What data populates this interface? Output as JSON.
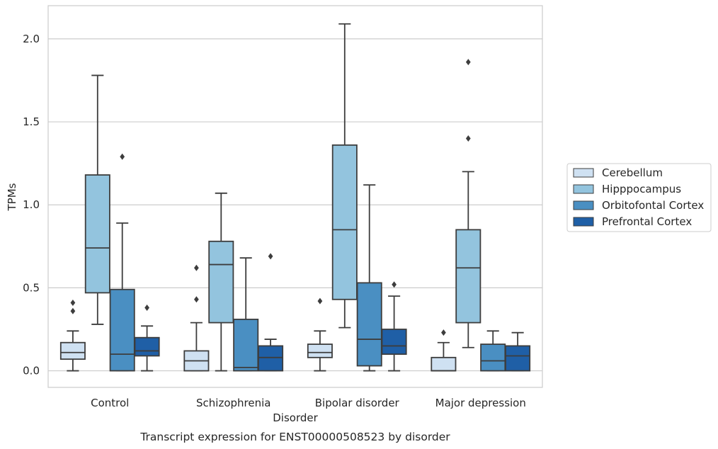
{
  "chart_data": {
    "type": "boxplot",
    "title": "",
    "caption": "Transcript expression for ENST00000508523 by disorder",
    "xlabel": "Disorder",
    "ylabel": "TPMs",
    "ylim": [
      -0.1,
      2.2
    ],
    "yticks": [
      0.0,
      0.5,
      1.0,
      1.5,
      2.0
    ],
    "ytick_labels": [
      "0.0",
      "0.5",
      "1.0",
      "1.5",
      "2.0"
    ],
    "grid": "horizontal",
    "legend_position": "right",
    "categories": [
      "Control",
      "Schizophrenia",
      "Bipolar disorder",
      "Major depression"
    ],
    "series": [
      {
        "name": "Cerebellum",
        "color": "#cfe1f2",
        "boxes": [
          {
            "whislo": 0.0,
            "q1": 0.07,
            "med": 0.11,
            "q3": 0.17,
            "whishi": 0.24,
            "fliers": [
              0.36,
              0.41
            ]
          },
          {
            "whislo": 0.0,
            "q1": 0.0,
            "med": 0.06,
            "q3": 0.12,
            "whishi": 0.29,
            "fliers": [
              0.43,
              0.62
            ]
          },
          {
            "whislo": 0.0,
            "q1": 0.08,
            "med": 0.11,
            "q3": 0.16,
            "whishi": 0.24,
            "fliers": [
              0.42
            ]
          },
          {
            "whislo": 0.0,
            "q1": 0.0,
            "med": 0.0,
            "q3": 0.08,
            "whishi": 0.17,
            "fliers": [
              0.23
            ]
          }
        ]
      },
      {
        "name": "Hipppocampus",
        "color": "#93c4de",
        "boxes": [
          {
            "whislo": 0.28,
            "q1": 0.47,
            "med": 0.74,
            "q3": 1.18,
            "whishi": 1.78,
            "fliers": []
          },
          {
            "whislo": 0.0,
            "q1": 0.29,
            "med": 0.64,
            "q3": 0.78,
            "whishi": 1.07,
            "fliers": []
          },
          {
            "whislo": 0.26,
            "q1": 0.43,
            "med": 0.85,
            "q3": 1.36,
            "whishi": 2.09,
            "fliers": []
          },
          {
            "whislo": 0.14,
            "q1": 0.29,
            "med": 0.62,
            "q3": 0.85,
            "whishi": 1.2,
            "fliers": [
              1.4,
              1.86
            ]
          }
        ]
      },
      {
        "name": "Orbitofontal Cortex",
        "color": "#4a8fc2",
        "boxes": [
          {
            "whislo": 0.0,
            "q1": 0.0,
            "med": 0.1,
            "q3": 0.49,
            "whishi": 0.89,
            "fliers": [
              1.29
            ]
          },
          {
            "whislo": 0.0,
            "q1": 0.0,
            "med": 0.02,
            "q3": 0.31,
            "whishi": 0.68,
            "fliers": []
          },
          {
            "whislo": 0.0,
            "q1": 0.03,
            "med": 0.19,
            "q3": 0.53,
            "whishi": 1.12,
            "fliers": []
          },
          {
            "whislo": 0.0,
            "q1": 0.0,
            "med": 0.06,
            "q3": 0.16,
            "whishi": 0.24,
            "fliers": []
          }
        ]
      },
      {
        "name": "Prefrontal Cortex",
        "color": "#1f5fa6",
        "boxes": [
          {
            "whislo": 0.0,
            "q1": 0.09,
            "med": 0.12,
            "q3": 0.2,
            "whishi": 0.27,
            "fliers": [
              0.38
            ]
          },
          {
            "whislo": 0.0,
            "q1": 0.0,
            "med": 0.08,
            "q3": 0.15,
            "whishi": 0.19,
            "fliers": [
              0.69
            ]
          },
          {
            "whislo": 0.0,
            "q1": 0.1,
            "med": 0.15,
            "q3": 0.25,
            "whishi": 0.45,
            "fliers": [
              0.52
            ]
          },
          {
            "whislo": 0.0,
            "q1": 0.0,
            "med": 0.09,
            "q3": 0.15,
            "whishi": 0.23,
            "fliers": []
          }
        ]
      }
    ]
  }
}
